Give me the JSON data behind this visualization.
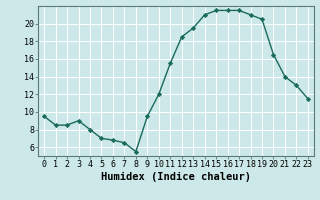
{
  "x": [
    0,
    1,
    2,
    3,
    4,
    5,
    6,
    7,
    8,
    9,
    10,
    11,
    12,
    13,
    14,
    15,
    16,
    17,
    18,
    19,
    20,
    21,
    22,
    23
  ],
  "y": [
    9.5,
    8.5,
    8.5,
    9.0,
    8.0,
    7.0,
    6.8,
    6.5,
    5.5,
    9.5,
    12.0,
    15.5,
    18.5,
    19.5,
    21.0,
    21.5,
    21.5,
    21.5,
    21.0,
    20.5,
    16.5,
    14.0,
    13.0,
    11.5
  ],
  "xlim": [
    -0.5,
    23.5
  ],
  "ylim": [
    5.0,
    22.0
  ],
  "yticks": [
    6,
    8,
    10,
    12,
    14,
    16,
    18,
    20
  ],
  "xticks": [
    0,
    1,
    2,
    3,
    4,
    5,
    6,
    7,
    8,
    9,
    10,
    11,
    12,
    13,
    14,
    15,
    16,
    17,
    18,
    19,
    20,
    21,
    22,
    23
  ],
  "xlabel": "Humidex (Indice chaleur)",
  "line_color": "#1a6b5a",
  "marker": "D",
  "marker_size": 2.2,
  "bg_color": "#cce8e8",
  "grid_color": "#ffffff",
  "xlabel_fontsize": 7.5,
  "tick_fontsize": 6.0,
  "spine_color": "#5a7a7a",
  "linewidth": 1.0
}
